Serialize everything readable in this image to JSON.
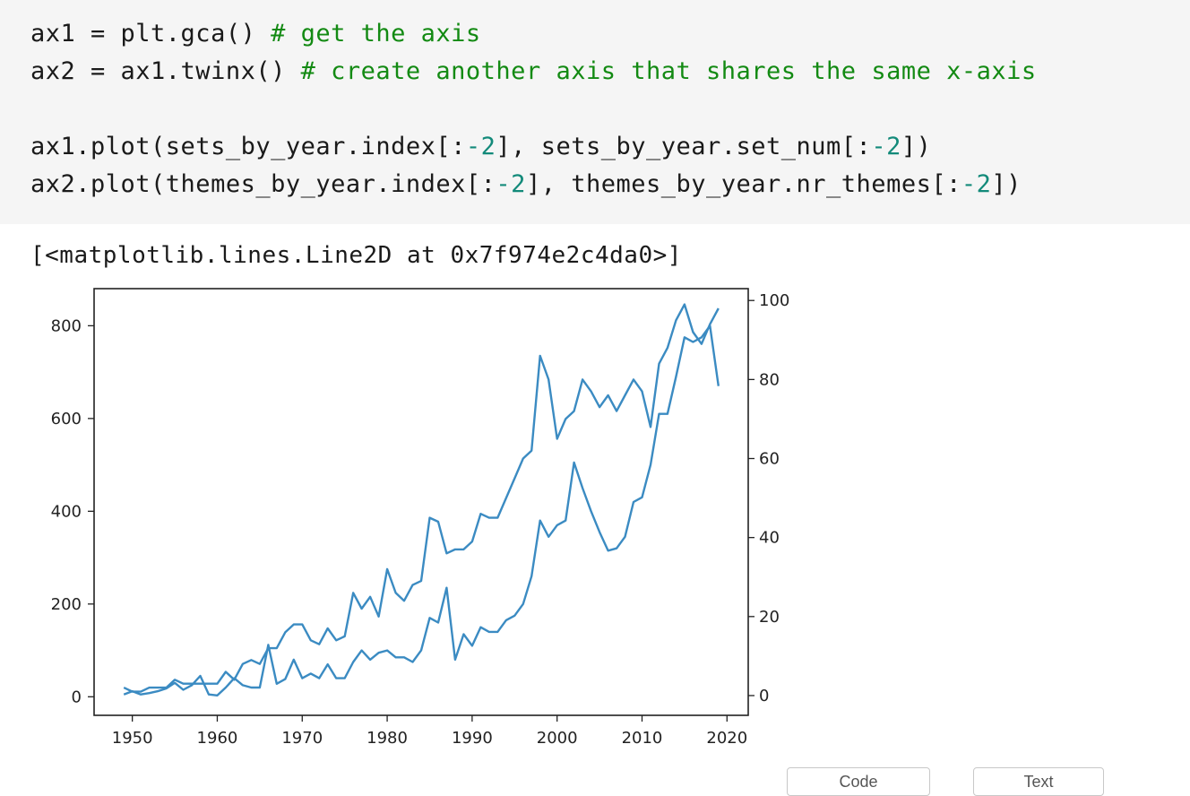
{
  "code": {
    "line1_code": "ax1 = plt.gca() ",
    "line1_comment": "# get the axis",
    "line2_code": "ax2 = ax1.twinx() ",
    "line2_comment": "# create another axis that shares the same x-axis",
    "line4_a": "ax1.plot(sets_by_year.index[:",
    "line4_n1": "-2",
    "line4_b": "], sets_by_year.set_num[:",
    "line4_n2": "-2",
    "line4_c": "])",
    "line5_a": "ax2.plot(themes_by_year.index[:",
    "line5_n1": "-2",
    "line5_b": "], themes_by_year.nr_themes[:",
    "line5_n2": "-2",
    "line5_c": "])"
  },
  "output": {
    "repr": "[<matplotlib.lines.Line2D at 0x7f974e2c4da0>]"
  },
  "buttons": {
    "code_label": "Code",
    "text_label": "Text"
  },
  "chart_data": {
    "type": "line",
    "title": "",
    "xlabel": "",
    "ylabel": "",
    "xlim": [
      1945.5,
      2022.5
    ],
    "ylim_left": [
      -40,
      880
    ],
    "ylim_right": [
      -5,
      103
    ],
    "x_ticks": [
      1950,
      1960,
      1970,
      1980,
      1990,
      2000,
      2010,
      2020
    ],
    "y_left_ticks": [
      0,
      200,
      400,
      600,
      800
    ],
    "y_right_ticks": [
      0,
      20,
      40,
      60,
      80,
      100
    ],
    "color": "#3b8bc2",
    "series": [
      {
        "axis": "left",
        "x": [
          1949,
          1950,
          1951,
          1952,
          1953,
          1954,
          1955,
          1956,
          1957,
          1958,
          1959,
          1960,
          1961,
          1962,
          1963,
          1964,
          1965,
          1966,
          1967,
          1968,
          1969,
          1970,
          1971,
          1972,
          1973,
          1974,
          1975,
          1976,
          1977,
          1978,
          1979,
          1980,
          1981,
          1982,
          1983,
          1984,
          1985,
          1986,
          1987,
          1988,
          1989,
          1990,
          1991,
          1992,
          1993,
          1994,
          1995,
          1996,
          1997,
          1998,
          1999,
          2000,
          2001,
          2002,
          2003,
          2004,
          2005,
          2006,
          2007,
          2008,
          2009,
          2010,
          2011,
          2012,
          2013,
          2014,
          2015,
          2016,
          2017,
          2018,
          2019
        ],
        "values": [
          5,
          12,
          5,
          8,
          12,
          18,
          30,
          15,
          25,
          45,
          5,
          3,
          20,
          40,
          25,
          20,
          20,
          112,
          28,
          38,
          80,
          40,
          50,
          40,
          70,
          40,
          40,
          75,
          100,
          80,
          95,
          100,
          85,
          85,
          75,
          100,
          170,
          160,
          235,
          80,
          135,
          110,
          150,
          140,
          140,
          165,
          175,
          200,
          260,
          380,
          345,
          370,
          380,
          505,
          450,
          400,
          355,
          315,
          320,
          345,
          420,
          430,
          500,
          610,
          610,
          690,
          775,
          765,
          775,
          800,
          670
        ]
      },
      {
        "axis": "right",
        "x": [
          1949,
          1950,
          1951,
          1952,
          1953,
          1954,
          1955,
          1956,
          1957,
          1958,
          1959,
          1960,
          1961,
          1962,
          1963,
          1964,
          1965,
          1966,
          1967,
          1968,
          1969,
          1970,
          1971,
          1972,
          1973,
          1974,
          1975,
          1976,
          1977,
          1978,
          1979,
          1980,
          1981,
          1982,
          1983,
          1984,
          1985,
          1986,
          1987,
          1988,
          1989,
          1990,
          1991,
          1992,
          1993,
          1994,
          1995,
          1996,
          1997,
          1998,
          1999,
          2000,
          2001,
          2002,
          2003,
          2004,
          2005,
          2006,
          2007,
          2008,
          2009,
          2010,
          2011,
          2012,
          2013,
          2014,
          2015,
          2016,
          2017,
          2018,
          2019
        ],
        "values": [
          2,
          1,
          1,
          2,
          2,
          2,
          4,
          3,
          3,
          3,
          3,
          3,
          6,
          4,
          8,
          9,
          8,
          12,
          12,
          16,
          18,
          18,
          14,
          13,
          17,
          14,
          15,
          26,
          22,
          25,
          20,
          32,
          26,
          24,
          28,
          29,
          45,
          44,
          36,
          37,
          37,
          39,
          46,
          45,
          45,
          50,
          55,
          60,
          62,
          86,
          80,
          65,
          70,
          72,
          80,
          77,
          73,
          76,
          72,
          76,
          80,
          77,
          68,
          84,
          88,
          95,
          99,
          92,
          89,
          94,
          98
        ]
      }
    ]
  }
}
